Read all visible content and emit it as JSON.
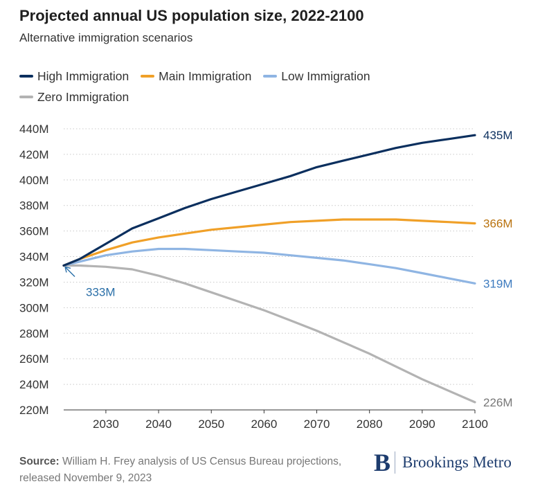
{
  "title": "Projected annual US population size, 2022-2100",
  "subtitle": "Alternative immigration scenarios",
  "source_label": "Source:",
  "source_text": "William H. Frey analysis of US Census Bureau projections, released November 9, 2023",
  "brand": {
    "mark": "B",
    "name": "Brookings Metro"
  },
  "chart_data": {
    "type": "line",
    "title": "Projected annual US population size, 2022-2100",
    "subtitle": "Alternative immigration scenarios",
    "xlabel": "",
    "ylabel": "",
    "xlim": [
      2022,
      2100
    ],
    "ylim": [
      220,
      440
    ],
    "y_unit_suffix": "M",
    "x_ticks": [
      2030,
      2040,
      2050,
      2060,
      2070,
      2080,
      2090,
      2100
    ],
    "y_ticks": [
      220,
      240,
      260,
      280,
      300,
      320,
      340,
      360,
      380,
      400,
      420,
      440
    ],
    "grid": "horizontal dotted",
    "legend_position": "top-left",
    "series": [
      {
        "name": "High Immigration",
        "color": "#0b2f5e",
        "end_label": "435M",
        "points": [
          [
            2022,
            333
          ],
          [
            2025,
            338
          ],
          [
            2030,
            350
          ],
          [
            2035,
            362
          ],
          [
            2040,
            370
          ],
          [
            2045,
            378
          ],
          [
            2050,
            385
          ],
          [
            2055,
            391
          ],
          [
            2060,
            397
          ],
          [
            2065,
            403
          ],
          [
            2070,
            410
          ],
          [
            2075,
            415
          ],
          [
            2080,
            420
          ],
          [
            2085,
            425
          ],
          [
            2090,
            429
          ],
          [
            2095,
            432
          ],
          [
            2100,
            435
          ]
        ]
      },
      {
        "name": "Main Immigration",
        "color": "#f0a028",
        "end_label": "366M",
        "points": [
          [
            2022,
            333
          ],
          [
            2025,
            338
          ],
          [
            2030,
            345
          ],
          [
            2035,
            351
          ],
          [
            2040,
            355
          ],
          [
            2045,
            358
          ],
          [
            2050,
            361
          ],
          [
            2055,
            363
          ],
          [
            2060,
            365
          ],
          [
            2065,
            367
          ],
          [
            2070,
            368
          ],
          [
            2075,
            369
          ],
          [
            2080,
            369
          ],
          [
            2085,
            369
          ],
          [
            2090,
            368
          ],
          [
            2095,
            367
          ],
          [
            2100,
            366
          ]
        ]
      },
      {
        "name": "Low Immigration",
        "color": "#8fb5e3",
        "end_label": "319M",
        "points": [
          [
            2022,
            333
          ],
          [
            2025,
            336
          ],
          [
            2030,
            341
          ],
          [
            2035,
            344
          ],
          [
            2040,
            346
          ],
          [
            2045,
            346
          ],
          [
            2050,
            345
          ],
          [
            2055,
            344
          ],
          [
            2060,
            343
          ],
          [
            2065,
            341
          ],
          [
            2070,
            339
          ],
          [
            2075,
            337
          ],
          [
            2080,
            334
          ],
          [
            2085,
            331
          ],
          [
            2090,
            327
          ],
          [
            2095,
            323
          ],
          [
            2100,
            319
          ]
        ]
      },
      {
        "name": "Zero Immigration",
        "color": "#b3b3b3",
        "end_label": "226M",
        "points": [
          [
            2022,
            333
          ],
          [
            2025,
            333
          ],
          [
            2030,
            332
          ],
          [
            2035,
            330
          ],
          [
            2040,
            325
          ],
          [
            2045,
            319
          ],
          [
            2050,
            312
          ],
          [
            2055,
            305
          ],
          [
            2060,
            298
          ],
          [
            2065,
            290
          ],
          [
            2070,
            282
          ],
          [
            2075,
            273
          ],
          [
            2080,
            264
          ],
          [
            2085,
            254
          ],
          [
            2090,
            244
          ],
          [
            2095,
            235
          ],
          [
            2100,
            226
          ]
        ]
      }
    ],
    "annotations": [
      {
        "text": "333M",
        "x": 2022,
        "y": 333,
        "color": "#2a6fa8"
      }
    ]
  }
}
